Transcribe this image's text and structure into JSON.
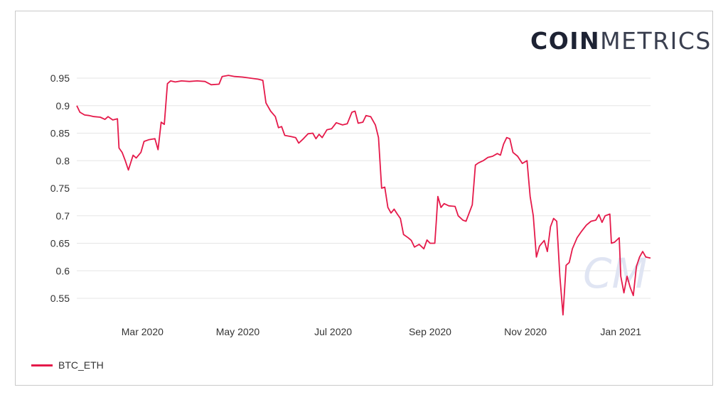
{
  "logo": {
    "bold": "COIN",
    "light": "METRICS"
  },
  "colors": {
    "series": "#e5194a",
    "watermark": "#d9dff0"
  },
  "watermark_icon": "cm-watermark-logo",
  "chart_data": {
    "type": "line",
    "ylim": [
      0.52,
      0.96
    ],
    "yticks": [
      "0.95",
      "0.9",
      "0.85",
      "0.8",
      "0.75",
      "0.7",
      "0.65",
      "0.6",
      "0.55"
    ],
    "xticks": [
      "Mar 2020",
      "May 2020",
      "Jul 2020",
      "Sep 2020",
      "Nov 2020",
      "Jan 2021"
    ],
    "xtick_dates": [
      "2020-03-01",
      "2020-05-01",
      "2020-07-01",
      "2020-09-01",
      "2020-11-01",
      "2021-01-01"
    ],
    "xlim": [
      "2020-01-19",
      "2021-01-20"
    ],
    "grid": true,
    "legend_position": "bottom-left",
    "series": [
      {
        "name": "BTC_ETH",
        "points": [
          [
            "2020-01-19",
            0.9
          ],
          [
            "2020-01-21",
            0.888
          ],
          [
            "2020-01-24",
            0.883
          ],
          [
            "2020-01-27",
            0.882
          ],
          [
            "2020-01-30",
            0.88
          ],
          [
            "2020-02-03",
            0.879
          ],
          [
            "2020-02-06",
            0.875
          ],
          [
            "2020-02-08",
            0.88
          ],
          [
            "2020-02-11",
            0.874
          ],
          [
            "2020-02-14",
            0.876
          ],
          [
            "2020-02-15",
            0.823
          ],
          [
            "2020-02-17",
            0.815
          ],
          [
            "2020-02-19",
            0.8
          ],
          [
            "2020-02-21",
            0.783
          ],
          [
            "2020-02-24",
            0.81
          ],
          [
            "2020-02-26",
            0.805
          ],
          [
            "2020-02-29",
            0.815
          ],
          [
            "2020-03-02",
            0.835
          ],
          [
            "2020-03-05",
            0.838
          ],
          [
            "2020-03-09",
            0.84
          ],
          [
            "2020-03-11",
            0.82
          ],
          [
            "2020-03-13",
            0.87
          ],
          [
            "2020-03-15",
            0.866
          ],
          [
            "2020-03-17",
            0.94
          ],
          [
            "2020-03-19",
            0.945
          ],
          [
            "2020-03-22",
            0.943
          ],
          [
            "2020-03-26",
            0.945
          ],
          [
            "2020-03-31",
            0.944
          ],
          [
            "2020-04-05",
            0.945
          ],
          [
            "2020-04-10",
            0.944
          ],
          [
            "2020-04-14",
            0.938
          ],
          [
            "2020-04-19",
            0.939
          ],
          [
            "2020-04-21",
            0.953
          ],
          [
            "2020-04-25",
            0.955
          ],
          [
            "2020-04-29",
            0.953
          ],
          [
            "2020-05-04",
            0.952
          ],
          [
            "2020-05-09",
            0.95
          ],
          [
            "2020-05-14",
            0.948
          ],
          [
            "2020-05-17",
            0.946
          ],
          [
            "2020-05-19",
            0.905
          ],
          [
            "2020-05-22",
            0.89
          ],
          [
            "2020-05-25",
            0.88
          ],
          [
            "2020-05-27",
            0.86
          ],
          [
            "2020-05-29",
            0.862
          ],
          [
            "2020-05-31",
            0.846
          ],
          [
            "2020-06-04",
            0.844
          ],
          [
            "2020-06-07",
            0.842
          ],
          [
            "2020-06-09",
            0.832
          ],
          [
            "2020-06-12",
            0.84
          ],
          [
            "2020-06-15",
            0.849
          ],
          [
            "2020-06-18",
            0.85
          ],
          [
            "2020-06-20",
            0.84
          ],
          [
            "2020-06-22",
            0.848
          ],
          [
            "2020-06-24",
            0.842
          ],
          [
            "2020-06-27",
            0.856
          ],
          [
            "2020-06-30",
            0.858
          ],
          [
            "2020-07-03",
            0.869
          ],
          [
            "2020-07-07",
            0.865
          ],
          [
            "2020-07-10",
            0.867
          ],
          [
            "2020-07-13",
            0.888
          ],
          [
            "2020-07-15",
            0.89
          ],
          [
            "2020-07-17",
            0.868
          ],
          [
            "2020-07-20",
            0.87
          ],
          [
            "2020-07-22",
            0.882
          ],
          [
            "2020-07-25",
            0.88
          ],
          [
            "2020-07-28",
            0.865
          ],
          [
            "2020-07-30",
            0.842
          ],
          [
            "2020-08-01",
            0.75
          ],
          [
            "2020-08-03",
            0.752
          ],
          [
            "2020-08-05",
            0.715
          ],
          [
            "2020-08-07",
            0.705
          ],
          [
            "2020-08-09",
            0.712
          ],
          [
            "2020-08-11",
            0.703
          ],
          [
            "2020-08-13",
            0.695
          ],
          [
            "2020-08-15",
            0.666
          ],
          [
            "2020-08-18",
            0.66
          ],
          [
            "2020-08-20",
            0.655
          ],
          [
            "2020-08-22",
            0.643
          ],
          [
            "2020-08-25",
            0.648
          ],
          [
            "2020-08-28",
            0.64
          ],
          [
            "2020-08-30",
            0.656
          ],
          [
            "2020-09-01",
            0.65
          ],
          [
            "2020-09-04",
            0.65
          ],
          [
            "2020-09-05",
            0.69
          ],
          [
            "2020-09-06",
            0.735
          ],
          [
            "2020-09-08",
            0.715
          ],
          [
            "2020-09-10",
            0.722
          ],
          [
            "2020-09-13",
            0.718
          ],
          [
            "2020-09-17",
            0.717
          ],
          [
            "2020-09-19",
            0.7
          ],
          [
            "2020-09-22",
            0.692
          ],
          [
            "2020-09-24",
            0.69
          ],
          [
            "2020-09-26",
            0.705
          ],
          [
            "2020-09-28",
            0.72
          ],
          [
            "2020-09-30",
            0.792
          ],
          [
            "2020-10-02",
            0.796
          ],
          [
            "2020-10-05",
            0.8
          ],
          [
            "2020-10-08",
            0.806
          ],
          [
            "2020-10-11",
            0.808
          ],
          [
            "2020-10-14",
            0.813
          ],
          [
            "2020-10-16",
            0.81
          ],
          [
            "2020-10-18",
            0.83
          ],
          [
            "2020-10-20",
            0.842
          ],
          [
            "2020-10-22",
            0.84
          ],
          [
            "2020-10-24",
            0.815
          ],
          [
            "2020-10-27",
            0.808
          ],
          [
            "2020-10-30",
            0.795
          ],
          [
            "2020-11-02",
            0.8
          ],
          [
            "2020-11-04",
            0.735
          ],
          [
            "2020-11-06",
            0.7
          ],
          [
            "2020-11-08",
            0.625
          ],
          [
            "2020-11-10",
            0.645
          ],
          [
            "2020-11-13",
            0.655
          ],
          [
            "2020-11-15",
            0.635
          ],
          [
            "2020-11-17",
            0.68
          ],
          [
            "2020-11-19",
            0.695
          ],
          [
            "2020-11-21",
            0.69
          ],
          [
            "2020-11-23",
            0.59
          ],
          [
            "2020-11-25",
            0.52
          ],
          [
            "2020-11-27",
            0.61
          ],
          [
            "2020-11-29",
            0.615
          ],
          [
            "2020-12-01",
            0.64
          ],
          [
            "2020-12-04",
            0.66
          ],
          [
            "2020-12-07",
            0.672
          ],
          [
            "2020-12-10",
            0.683
          ],
          [
            "2020-12-13",
            0.69
          ],
          [
            "2020-12-16",
            0.692
          ],
          [
            "2020-12-18",
            0.702
          ],
          [
            "2020-12-20",
            0.688
          ],
          [
            "2020-12-22",
            0.7
          ],
          [
            "2020-12-25",
            0.703
          ],
          [
            "2020-12-26",
            0.65
          ],
          [
            "2020-12-28",
            0.652
          ],
          [
            "2020-12-31",
            0.66
          ],
          [
            "2021-01-01",
            0.59
          ],
          [
            "2021-01-03",
            0.56
          ],
          [
            "2021-01-05",
            0.59
          ],
          [
            "2021-01-07",
            0.57
          ],
          [
            "2021-01-09",
            0.555
          ],
          [
            "2021-01-11",
            0.608
          ],
          [
            "2021-01-13",
            0.625
          ],
          [
            "2021-01-15",
            0.635
          ],
          [
            "2021-01-17",
            0.625
          ],
          [
            "2021-01-20",
            0.623
          ]
        ]
      }
    ]
  }
}
